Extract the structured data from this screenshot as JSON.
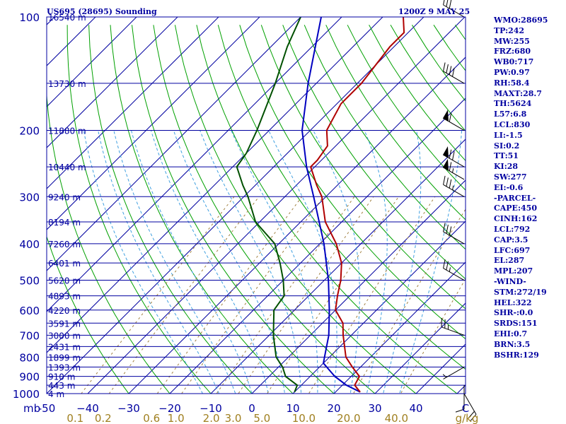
{
  "header": {
    "station_title": "US695 (28695) Sounding",
    "datetime": "1200Z  9 MAY 25"
  },
  "stats": [
    "WMO:28695",
    "TP:242",
    "MW:255",
    "FRZ:680",
    "WB0:717",
    "PW:0.97",
    "RH:58.4",
    "MAXT:28.7",
    "TH:5624",
    "L57:6.8",
    "LCL:830",
    "LI:-1.5",
    "SI:0.2",
    "TT:51",
    "KI:28",
    "SW:277",
    "EI:-0.6",
    "-PARCEL-",
    "CAPE:450",
    "CINH:162",
    "LCL:792",
    "CAP:3.5",
    "LFC:697",
    "EL:287",
    "MPL:207",
    "-WIND-",
    "STM:272/19",
    "HEL:322",
    "SHR-:0.0",
    "SRDS:151",
    "EHI:0.7",
    "BRN:3.5",
    "BSHR:129"
  ],
  "colors": {
    "isobar": "#0000a0",
    "isotherm": "#0000a0",
    "dry_adiabat": "#00a000",
    "moist_adiabat": "#40a0e0",
    "mixing_ratio": "#a08040",
    "temperature": "#b00000",
    "dewpoint": "#005000",
    "parcel": "#0000c0",
    "axis_text": "#0000a0",
    "mixing_text": "#a08020",
    "barb": "#000000"
  },
  "chart_data": {
    "type": "skew-t",
    "pressure_axis": {
      "label": "mb",
      "ticks": [
        100,
        200,
        300,
        400,
        500,
        600,
        700,
        800,
        900,
        1000
      ],
      "range": [
        100,
        1000
      ],
      "scale": "log"
    },
    "temperature_axis": {
      "ticks": [
        -50,
        -40,
        -30,
        -20,
        -10,
        0,
        10,
        20,
        30,
        40
      ],
      "tick_labels": [
        "-50",
        "−40",
        "−30",
        "−20",
        "−10",
        "0",
        "10",
        "20",
        "30",
        "40"
      ],
      "end_label": "C"
    },
    "mixing_ratio_axis": {
      "labels": [
        "0.1",
        "0.2",
        "0.6",
        "1.0",
        "2.0",
        "3.0",
        "5.0",
        "10.0",
        "20.0",
        "40.0"
      ],
      "unit": "g/kg"
    },
    "heights": [
      {
        "p": 100,
        "label": "16540 m"
      },
      {
        "p": 150,
        "label": "13730 m"
      },
      {
        "p": 200,
        "label": "11880 m"
      },
      {
        "p": 250,
        "label": "10440 m"
      },
      {
        "p": 300,
        "label": "9240 m"
      },
      {
        "p": 350,
        "label": "8194 m"
      },
      {
        "p": 400,
        "label": "7260 m"
      },
      {
        "p": 450,
        "label": "6401 m"
      },
      {
        "p": 500,
        "label": "5620 m"
      },
      {
        "p": 550,
        "label": "4893 m"
      },
      {
        "p": 600,
        "label": "4220 m"
      },
      {
        "p": 650,
        "label": "3591 m"
      },
      {
        "p": 700,
        "label": "3000 m"
      },
      {
        "p": 750,
        "label": "2431 m"
      },
      {
        "p": 800,
        "label": "1899 m"
      },
      {
        "p": 850,
        "label": "1393 m"
      },
      {
        "p": 900,
        "label": "910 m"
      },
      {
        "p": 950,
        "label": "443 m"
      },
      {
        "p": 1000,
        "label": "4 m"
      }
    ],
    "temperature": [
      {
        "p": 990,
        "t": 26
      },
      {
        "p": 950,
        "t": 23
      },
      {
        "p": 900,
        "t": 22
      },
      {
        "p": 850,
        "t": 18
      },
      {
        "p": 800,
        "t": 14
      },
      {
        "p": 700,
        "t": 8
      },
      {
        "p": 650,
        "t": 5
      },
      {
        "p": 600,
        "t": 0
      },
      {
        "p": 550,
        "t": -3
      },
      {
        "p": 500,
        "t": -6
      },
      {
        "p": 450,
        "t": -10
      },
      {
        "p": 400,
        "t": -16
      },
      {
        "p": 350,
        "t": -24
      },
      {
        "p": 300,
        "t": -31
      },
      {
        "p": 280,
        "t": -35
      },
      {
        "p": 250,
        "t": -41
      },
      {
        "p": 240,
        "t": -41
      },
      {
        "p": 220,
        "t": -42
      },
      {
        "p": 200,
        "t": -46
      },
      {
        "p": 170,
        "t": -49
      },
      {
        "p": 150,
        "t": -49
      },
      {
        "p": 120,
        "t": -51
      },
      {
        "p": 110,
        "t": -51
      },
      {
        "p": 100,
        "t": -55
      }
    ],
    "dewpoint": [
      {
        "p": 990,
        "t": 10
      },
      {
        "p": 950,
        "t": 9
      },
      {
        "p": 900,
        "t": 4
      },
      {
        "p": 850,
        "t": 1
      },
      {
        "p": 800,
        "t": -3
      },
      {
        "p": 700,
        "t": -9
      },
      {
        "p": 600,
        "t": -15
      },
      {
        "p": 550,
        "t": -16
      },
      {
        "p": 500,
        "t": -20
      },
      {
        "p": 450,
        "t": -25
      },
      {
        "p": 400,
        "t": -31
      },
      {
        "p": 350,
        "t": -41
      },
      {
        "p": 300,
        "t": -49
      },
      {
        "p": 280,
        "t": -53
      },
      {
        "p": 250,
        "t": -59
      },
      {
        "p": 230,
        "t": -60
      },
      {
        "p": 200,
        "t": -63
      },
      {
        "p": 150,
        "t": -70
      },
      {
        "p": 120,
        "t": -76
      },
      {
        "p": 100,
        "t": -80
      }
    ],
    "parcel": [
      {
        "p": 990,
        "t": 26
      },
      {
        "p": 950,
        "t": 21
      },
      {
        "p": 900,
        "t": 16
      },
      {
        "p": 830,
        "t": 10
      },
      {
        "p": 800,
        "t": 8.8
      },
      {
        "p": 700,
        "t": 4.5
      },
      {
        "p": 600,
        "t": -1.5
      },
      {
        "p": 500,
        "t": -9
      },
      {
        "p": 400,
        "t": -19
      },
      {
        "p": 300,
        "t": -33
      },
      {
        "p": 250,
        "t": -42
      },
      {
        "p": 200,
        "t": -52
      },
      {
        "p": 150,
        "t": -62
      },
      {
        "p": 100,
        "t": -75
      }
    ],
    "wind_barbs": [
      {
        "p": 1000,
        "dir": 150,
        "spd": 20
      },
      {
        "p": 950,
        "dir": 180,
        "spd": 10
      },
      {
        "p": 850,
        "dir": 240,
        "spd": 5
      },
      {
        "p": 700,
        "dir": 290,
        "spd": 25
      },
      {
        "p": 500,
        "dir": 300,
        "spd": 25
      },
      {
        "p": 400,
        "dir": 300,
        "spd": 30
      },
      {
        "p": 300,
        "dir": 300,
        "spd": 35
      },
      {
        "p": 270,
        "dir": 300,
        "spd": 65
      },
      {
        "p": 250,
        "dir": 300,
        "spd": 70
      },
      {
        "p": 200,
        "dir": 300,
        "spd": 60
      },
      {
        "p": 150,
        "dir": 300,
        "spd": 40
      },
      {
        "p": 100,
        "dir": 300,
        "spd": 30
      }
    ],
    "grid": true
  }
}
